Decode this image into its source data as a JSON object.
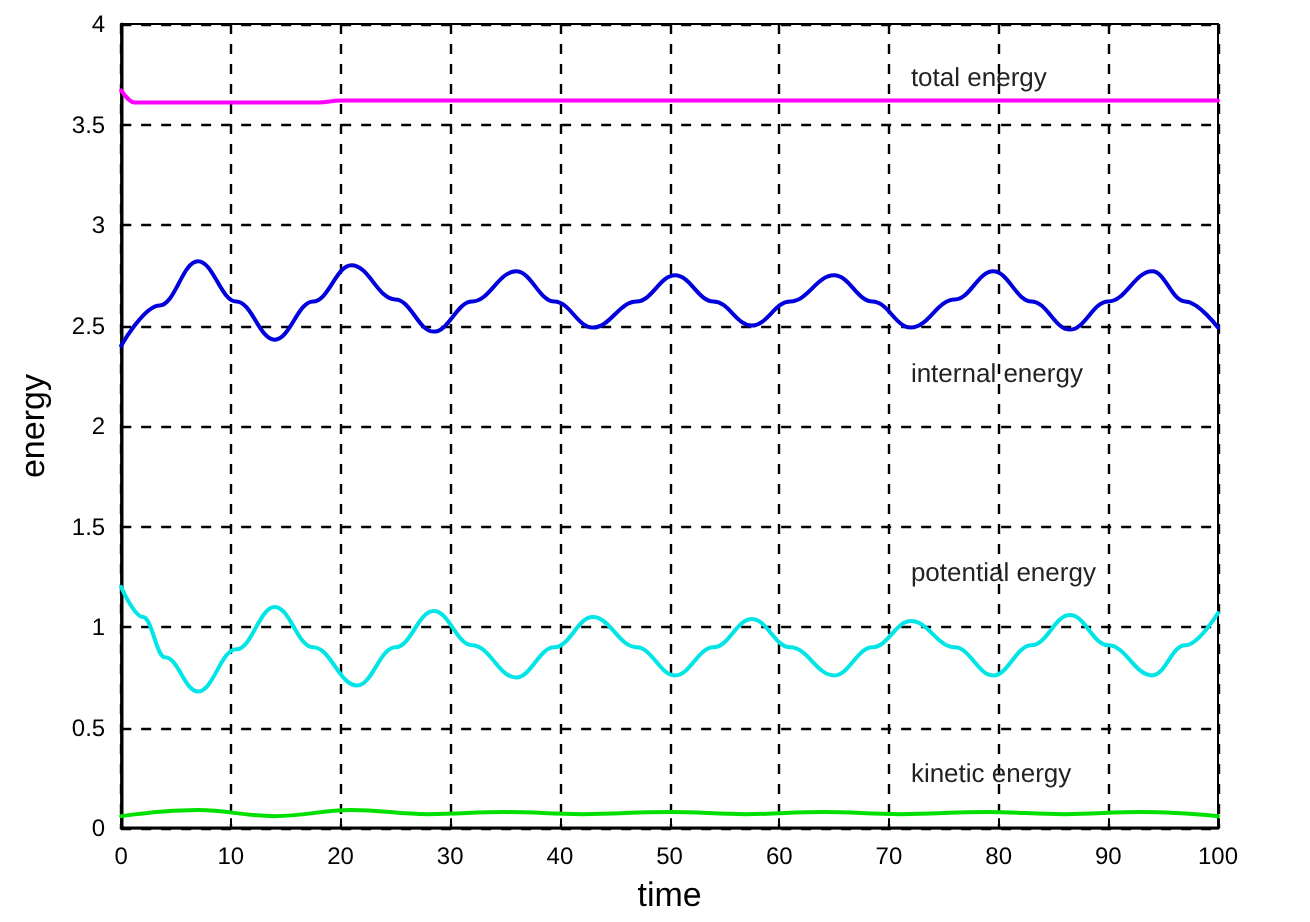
{
  "chart_data": {
    "type": "line",
    "xlabel": "time",
    "ylabel": "energy",
    "xlim": [
      0,
      100
    ],
    "ylim": [
      0,
      4
    ],
    "xticks": [
      0,
      10,
      20,
      30,
      40,
      50,
      60,
      70,
      80,
      90,
      100
    ],
    "yticks": [
      0,
      0.5,
      1,
      1.5,
      2,
      2.5,
      3,
      3.5,
      4
    ],
    "grid": true,
    "legend": false,
    "marker": "none",
    "line_style": "solid",
    "series": [
      {
        "name": "total energy",
        "color": "#ff00ff",
        "x": [
          0,
          1.2,
          10,
          18,
          20,
          30,
          40,
          50,
          60,
          70,
          80,
          90,
          100
        ],
        "values": [
          3.67,
          3.61,
          3.61,
          3.61,
          3.62,
          3.62,
          3.62,
          3.62,
          3.62,
          3.62,
          3.62,
          3.62,
          3.62
        ]
      },
      {
        "name": "internal energy",
        "color": "#0000dd",
        "x": [
          0,
          3.5,
          7,
          10.5,
          14,
          17.5,
          21,
          25,
          28.5,
          32,
          36,
          39.5,
          43,
          47,
          50.5,
          54,
          57.5,
          61,
          65,
          68.5,
          72,
          76,
          79.5,
          83,
          86.5,
          90,
          94,
          97,
          100
        ],
        "values": [
          2.4,
          2.6,
          2.82,
          2.62,
          2.43,
          2.62,
          2.8,
          2.63,
          2.47,
          2.62,
          2.77,
          2.62,
          2.49,
          2.62,
          2.75,
          2.62,
          2.5,
          2.62,
          2.75,
          2.62,
          2.49,
          2.63,
          2.77,
          2.62,
          2.48,
          2.62,
          2.77,
          2.62,
          2.49
        ]
      },
      {
        "name": "potential energy",
        "color": "#00e5e5",
        "x": [
          0,
          2,
          4,
          7,
          10.5,
          14,
          17.5,
          21.5,
          25,
          28.5,
          32,
          36,
          39.5,
          43,
          47,
          50.5,
          54,
          57.5,
          61,
          65,
          68.5,
          72,
          76,
          79.5,
          83,
          86.5,
          90,
          94,
          97,
          100
        ],
        "values": [
          1.2,
          1.05,
          0.85,
          0.68,
          0.89,
          1.1,
          0.9,
          0.71,
          0.9,
          1.08,
          0.91,
          0.75,
          0.9,
          1.05,
          0.9,
          0.76,
          0.9,
          1.04,
          0.9,
          0.76,
          0.9,
          1.03,
          0.9,
          0.76,
          0.91,
          1.06,
          0.91,
          0.76,
          0.91,
          1.07
        ]
      },
      {
        "name": "kinetic energy",
        "color": "#00e000",
        "x": [
          0,
          7,
          14,
          21,
          28,
          35,
          42,
          50,
          57,
          64,
          71,
          79,
          86,
          93,
          100
        ],
        "values": [
          0.06,
          0.09,
          0.06,
          0.09,
          0.07,
          0.08,
          0.07,
          0.08,
          0.07,
          0.08,
          0.07,
          0.08,
          0.07,
          0.08,
          0.06
        ]
      }
    ]
  }
}
